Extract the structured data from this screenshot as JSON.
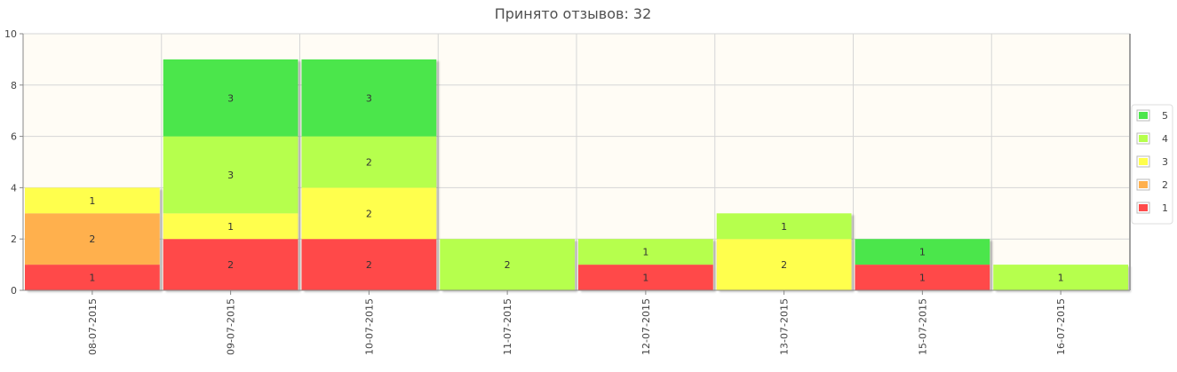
{
  "title": "Принято отзывов: 32",
  "chart_data": {
    "type": "bar",
    "stacked": true,
    "title": "Принято отзывов: 32",
    "xlabel": "",
    "ylabel": "",
    "ylim": [
      0,
      10
    ],
    "yticks": [
      "0",
      "2",
      "4",
      "6",
      "8",
      "10"
    ],
    "grid": true,
    "legend_position": "right",
    "categories": [
      "08-07-2015",
      "09-07-2015",
      "10-07-2015",
      "11-07-2015",
      "12-07-2015",
      "13-07-2015",
      "15-07-2015",
      "16-07-2015"
    ],
    "series": [
      {
        "name": "1",
        "color": "#ff4a4a",
        "values": [
          1,
          2,
          2,
          0,
          1,
          0,
          1,
          0
        ]
      },
      {
        "name": "2",
        "color": "#ffb04d",
        "values": [
          2,
          0,
          0,
          0,
          0,
          0,
          0,
          0
        ]
      },
      {
        "name": "3",
        "color": "#ffff4d",
        "values": [
          1,
          1,
          2,
          0,
          0,
          2,
          0,
          0
        ]
      },
      {
        "name": "4",
        "color": "#b6ff4d",
        "values": [
          0,
          3,
          2,
          2,
          1,
          1,
          0,
          1
        ]
      },
      {
        "name": "5",
        "color": "#4ce64c",
        "values": [
          0,
          3,
          3,
          0,
          0,
          0,
          1,
          0
        ]
      }
    ]
  },
  "colors": {
    "plot_background": "#fffcf5",
    "grid": "#d6d6d6",
    "axis": "#888888"
  }
}
